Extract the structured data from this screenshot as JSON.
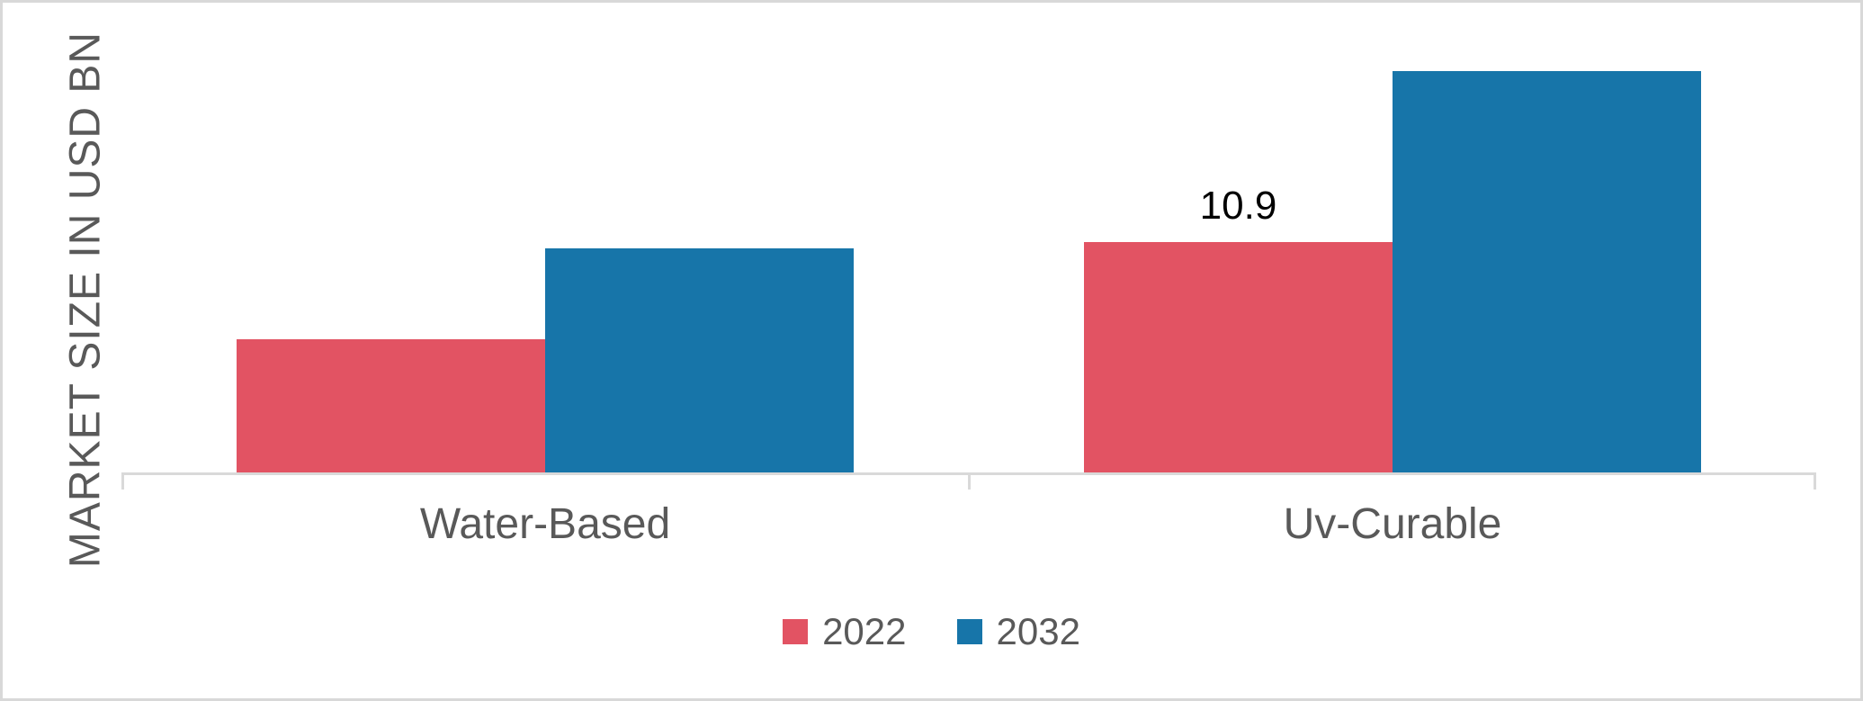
{
  "chart_data": {
    "type": "bar",
    "title": "",
    "ylabel": "MARKET SIZE IN USD BN",
    "xlabel": "",
    "ylim": [
      0,
      20
    ],
    "grid": false,
    "legend_position": "bottom",
    "categories": [
      "Water-Based",
      "Uv-Curable"
    ],
    "series": [
      {
        "name": "2022",
        "color": "#e25363",
        "values": [
          6.3,
          10.9
        ],
        "data_labels": [
          "",
          "10.9"
        ]
      },
      {
        "name": "2032",
        "color": "#1775a9",
        "values": [
          10.6,
          19.0
        ],
        "data_labels": [
          "",
          ""
        ]
      }
    ],
    "visible_data_labels": [
      {
        "category": "Uv-Curable",
        "series": "2022",
        "text": "10.9"
      }
    ]
  },
  "colors": {
    "frame_border": "#d8d8d8",
    "axis_line": "#d9d9d9",
    "text_gray": "#595959",
    "data_label_black": "#000000",
    "background": "#ffffff"
  }
}
